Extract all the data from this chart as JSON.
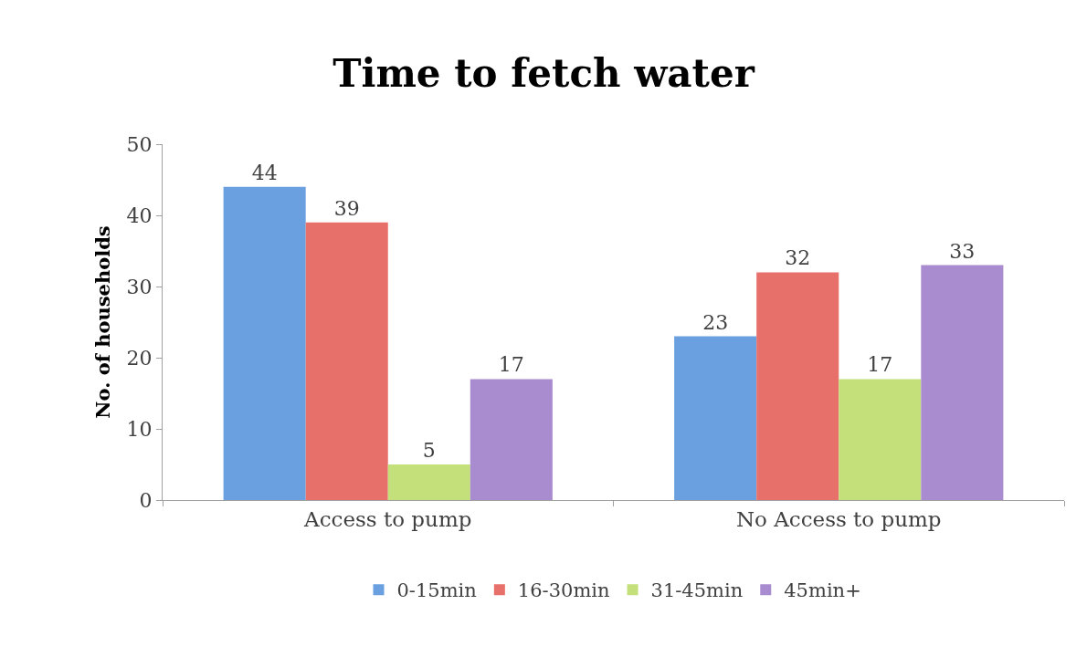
{
  "chart_data": {
    "type": "bar",
    "title": "Time to fetch water",
    "ylabel": "No. of households",
    "categories": [
      "Access to pump",
      "No Access to pump"
    ],
    "series": [
      {
        "name": "0-15min",
        "color": "#6a9fe0",
        "values": [
          44,
          23
        ]
      },
      {
        "name": "16-30min",
        "color": "#e8706a",
        "values": [
          39,
          32
        ]
      },
      {
        "name": "31-45min",
        "color": "#c4e07a",
        "values": [
          5,
          17
        ]
      },
      {
        "name": "45min+",
        "color": "#a98bd0",
        "values": [
          17,
          33
        ]
      }
    ],
    "ylim": [
      0,
      50
    ],
    "yticks": [
      0,
      10,
      20,
      30,
      40,
      50
    ],
    "grid": false,
    "legend": "bottom",
    "data_labels": true
  }
}
